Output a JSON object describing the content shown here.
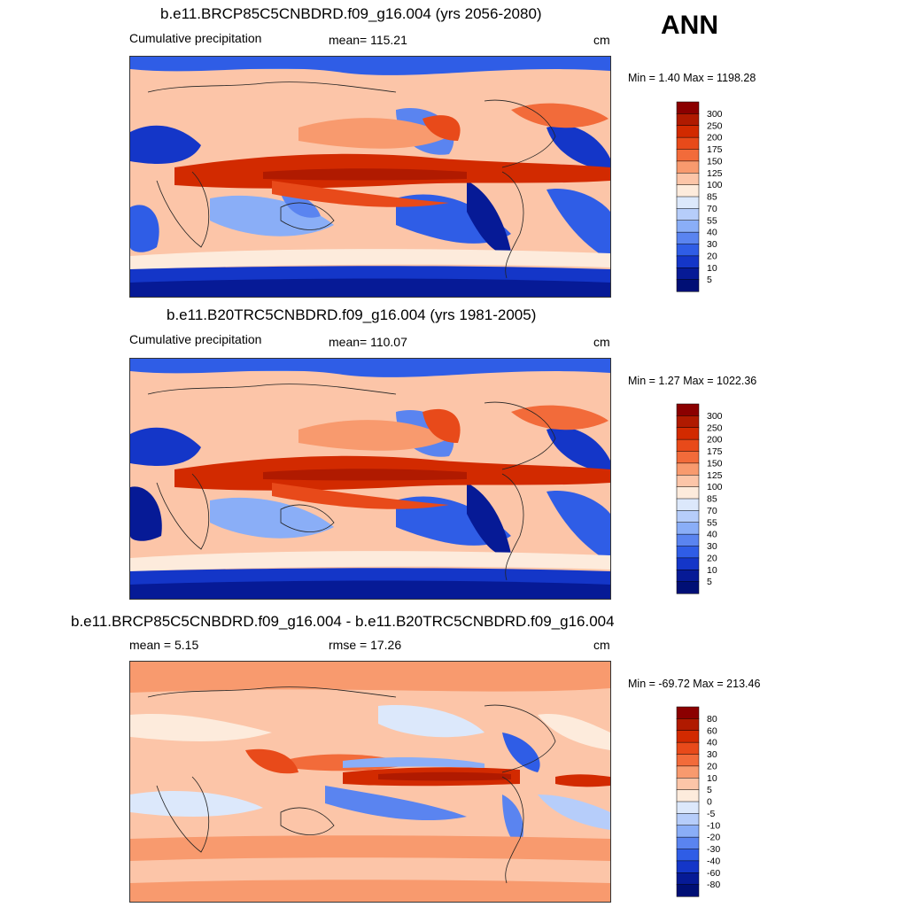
{
  "season": "ANN",
  "panels": [
    {
      "title": "b.e11.BRCP85C5CNBDRD.f09_g16.004 (yrs 2056-2080)",
      "left_label": "Cumulative precipitation",
      "center_label": "mean= 115.21",
      "right_label": "cm",
      "minmax": "Min =   1.40 Max = 1198.28",
      "colorbar": {
        "levels": [
          "300",
          "250",
          "200",
          "175",
          "150",
          "125",
          "100",
          "85",
          "70",
          "55",
          "40",
          "30",
          "20",
          "10",
          "5"
        ],
        "colors": [
          "#8b0000",
          "#b01a00",
          "#d22a00",
          "#e84a1a",
          "#f26b3a",
          "#f89a6e",
          "#fcc5a8",
          "#fdebdc",
          "#dce8fb",
          "#b6cdfa",
          "#8aaef7",
          "#5a84f0",
          "#2f5de6",
          "#1436c8",
          "#061a96",
          "#000f75"
        ]
      },
      "map_note": "global annual cumulative precipitation field"
    },
    {
      "title": "b.e11.B20TRC5CNBDRD.f09_g16.004 (yrs 1981-2005)",
      "left_label": "Cumulative precipitation",
      "center_label": "mean= 110.07",
      "right_label": "cm",
      "minmax": "Min =   1.27 Max = 1022.36",
      "colorbar": {
        "levels": [
          "300",
          "250",
          "200",
          "175",
          "150",
          "125",
          "100",
          "85",
          "70",
          "55",
          "40",
          "30",
          "20",
          "10",
          "5"
        ],
        "colors": [
          "#8b0000",
          "#b01a00",
          "#d22a00",
          "#e84a1a",
          "#f26b3a",
          "#f89a6e",
          "#fcc5a8",
          "#fdebdc",
          "#dce8fb",
          "#b6cdfa",
          "#8aaef7",
          "#5a84f0",
          "#2f5de6",
          "#1436c8",
          "#061a96",
          "#000f75"
        ]
      },
      "map_note": "global annual cumulative precipitation field"
    },
    {
      "title": "b.e11.BRCP85C5CNBDRD.f09_g16.004 - b.e11.B20TRC5CNBDRD.f09_g16.004",
      "left_label": "mean =   5.15",
      "center_label": "rmse =  17.26",
      "right_label": "cm",
      "minmax": "Min = -69.72 Max = 213.46",
      "colorbar": {
        "levels": [
          "80",
          "60",
          "40",
          "30",
          "20",
          "10",
          "5",
          "0",
          "-5",
          "-10",
          "-20",
          "-30",
          "-40",
          "-60",
          "-80"
        ],
        "colors": [
          "#8b0000",
          "#b01a00",
          "#d22a00",
          "#e84a1a",
          "#f26b3a",
          "#f89a6e",
          "#fcc5a8",
          "#fdebdc",
          "#dce8fb",
          "#b6cdfa",
          "#8aaef7",
          "#5a84f0",
          "#2f5de6",
          "#1436c8",
          "#061a96",
          "#000f75"
        ]
      },
      "map_note": "difference field"
    }
  ]
}
